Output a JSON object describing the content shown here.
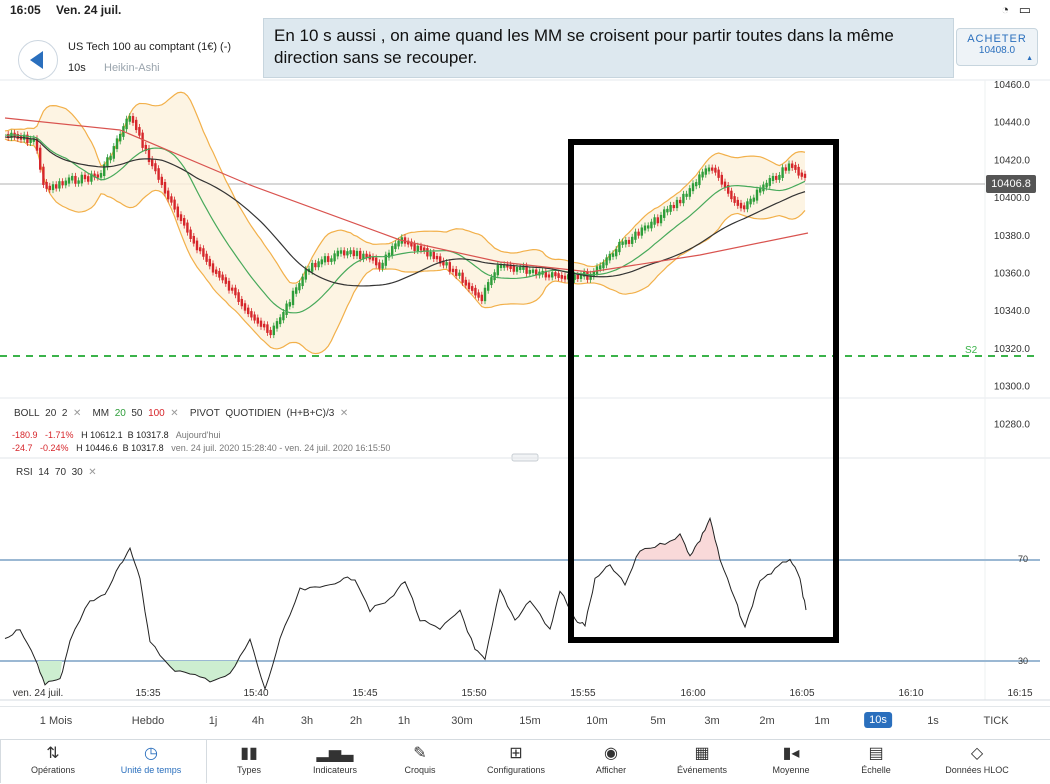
{
  "status_bar": {
    "time": "16:05",
    "date": "Ven. 24 juil.",
    "system_icons": "wifi battery"
  },
  "header": {
    "instrument": "US Tech 100 au comptant (1€) (-)",
    "timeframe": "10s",
    "chart_type": "Heikin-Ashi",
    "buy_label": "ACHETER",
    "buy_price": "10408.0"
  },
  "annotation": "En 10 s aussi , on aime quand les MM se croisent pour partir toutes dans la même direction sans se recouper.",
  "price_axis": {
    "ticks": [
      "10460.0",
      "10440.0",
      "10420.0",
      "10400.0",
      "10380.0",
      "10360.0",
      "10340.0",
      "10320.0",
      "10300.0",
      "10280.0"
    ],
    "current_price": "10406.8",
    "s2_label": "S2"
  },
  "indicators": {
    "boll": {
      "name": "BOLL",
      "p1": "20",
      "p2": "2"
    },
    "mm": {
      "name": "MM",
      "p1": "20",
      "p2": "50",
      "p3": "100"
    },
    "pivot": {
      "name": "PIVOT",
      "period": "QUOTIDIEN",
      "formula": "(H+B+C)/3"
    },
    "stats_today": {
      "chg": "-180.9",
      "pct": "-1.71%",
      "high": "H 10612.1",
      "low": "B 10317.8",
      "label": "Aujourd'hui"
    },
    "stats_range": {
      "chg": "-24.7",
      "pct": "-0.24%",
      "high": "H 10446.6",
      "low": "B 10317.8",
      "label": "ven. 24 juil. 2020 15:28:40 - ven. 24 juil. 2020 16:15:50"
    },
    "rsi": {
      "name": "RSI",
      "p1": "14",
      "p2": "70",
      "p3": "30"
    },
    "rsi_levels": [
      "70",
      "30"
    ]
  },
  "time_axis": [
    "ven. 24 juil.",
    "15:35",
    "15:40",
    "15:45",
    "15:50",
    "15:55",
    "16:00",
    "16:05",
    "16:10",
    "16:15"
  ],
  "timeframes": {
    "items": [
      "1 Mois",
      "Hebdo",
      "1j",
      "4h",
      "3h",
      "2h",
      "1h",
      "30m",
      "15m",
      "10m",
      "5m",
      "3m",
      "2m",
      "1m",
      "10s",
      "1s",
      "TICK"
    ],
    "selected": "10s"
  },
  "toolbar": {
    "items": [
      {
        "label": "Opérations",
        "icon": "arrows-updown-icon"
      },
      {
        "label": "Unité de temps",
        "icon": "clock-icon"
      },
      {
        "label": "Types",
        "icon": "candles-icon"
      },
      {
        "label": "Indicateurs",
        "icon": "bar-chart-icon"
      },
      {
        "label": "Croquis",
        "icon": "pencil-icon"
      },
      {
        "label": "Configurations",
        "icon": "layout-icon"
      },
      {
        "label": "Afficher",
        "icon": "eye-icon"
      },
      {
        "label": "Événements",
        "icon": "calendar-icon"
      },
      {
        "label": "Moyenne",
        "icon": "average-icon"
      },
      {
        "label": "Échelle",
        "icon": "scale-icon"
      },
      {
        "label": "Données HLOC",
        "icon": "crosshair-icon"
      }
    ],
    "active": "Unité de temps"
  },
  "colors": {
    "accent": "#2a6fbd",
    "bull": "#2e9d3a",
    "bear": "#d6262b",
    "boll": "#f2b04a",
    "mm20": "#47a95a",
    "mm50": "#333333",
    "mm100": "#d9534f",
    "s2": "#3bb34a",
    "rsi_level": "#9bb8d3"
  }
}
